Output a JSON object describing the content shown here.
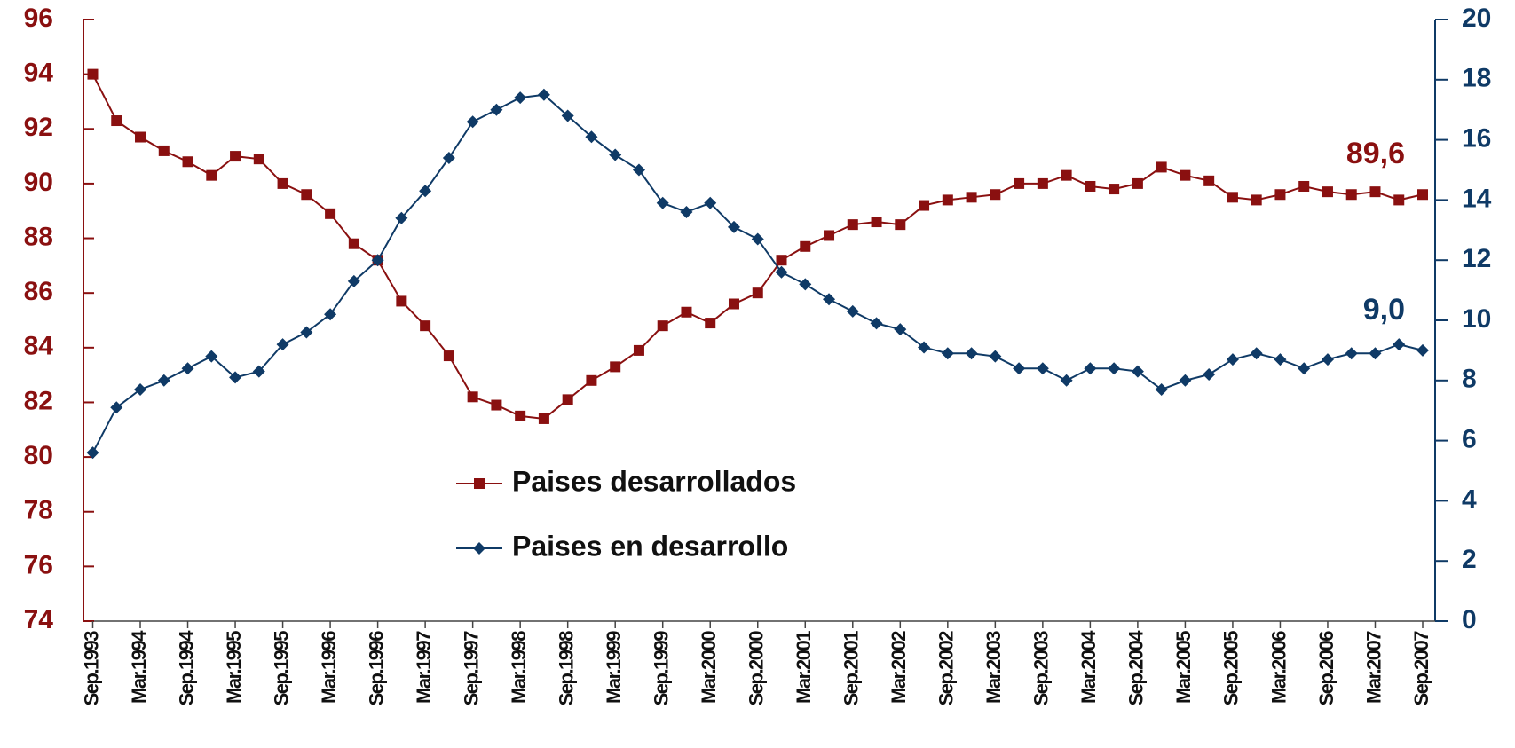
{
  "chart_data": {
    "type": "line",
    "categories": [
      "Sep.1993",
      null,
      "Mar.1994",
      null,
      "Sep.1994",
      null,
      "Mar.1995",
      null,
      "Sep.1995",
      null,
      "Mar.1996",
      null,
      "Sep.1996",
      null,
      "Mar.1997",
      null,
      "Sep.1997",
      null,
      "Mar.1998",
      null,
      "Sep.1998",
      null,
      "Mar.1999",
      null,
      "Sep.1999",
      null,
      "Mar.2000",
      null,
      "Sep.2000",
      null,
      "Mar.2001",
      null,
      "Sep.2001",
      null,
      "Mar.2002",
      null,
      "Sep.2002",
      null,
      "Mar.2003",
      null,
      "Sep.2003",
      null,
      "Mar.2004",
      null,
      "Sep.2004",
      null,
      "Mar.2005",
      null,
      "Sep.2005",
      null,
      "Mar.2006",
      null,
      "Sep.2006",
      null,
      "Mar.2007",
      null,
      "Sep.2007"
    ],
    "series": [
      {
        "name": "Paises desarrollados",
        "color": "#8a1010",
        "marker": "square",
        "values": [
          94.0,
          92.3,
          91.7,
          91.2,
          90.8,
          90.3,
          91.0,
          90.9,
          90.0,
          89.6,
          88.9,
          87.8,
          87.2,
          85.7,
          84.8,
          83.7,
          82.2,
          81.9,
          81.5,
          81.4,
          82.1,
          82.8,
          83.3,
          83.9,
          84.8,
          85.3,
          84.9,
          85.6,
          86.0,
          87.2,
          87.7,
          88.1,
          88.5,
          88.6,
          88.5,
          89.2,
          89.4,
          89.5,
          89.6,
          90.0,
          90.0,
          90.3,
          89.9,
          89.8,
          90.0,
          90.6,
          90.3,
          90.1,
          89.5,
          89.4,
          89.6,
          89.9,
          89.7,
          89.6,
          89.7,
          89.4,
          89.6
        ]
      },
      {
        "name": "Paises en desarrollo",
        "color": "#0f3a66",
        "marker": "diamond",
        "axis": "y2",
        "values": [
          5.6,
          7.1,
          7.7,
          8.0,
          8.4,
          8.8,
          8.1,
          8.3,
          9.2,
          9.6,
          10.2,
          11.3,
          12.0,
          13.4,
          14.3,
          15.4,
          16.6,
          17.0,
          17.4,
          17.5,
          16.8,
          16.1,
          15.5,
          15.0,
          13.9,
          13.6,
          13.9,
          13.1,
          12.7,
          11.6,
          11.2,
          10.7,
          10.3,
          9.9,
          9.7,
          9.1,
          8.9,
          8.9,
          8.8,
          8.4,
          8.4,
          8.0,
          8.4,
          8.4,
          8.3,
          7.7,
          8.0,
          8.2,
          8.7,
          8.9,
          8.7,
          8.4,
          8.7,
          8.9,
          8.9,
          9.2,
          9.0
        ]
      }
    ],
    "annotations": [
      {
        "text": "89,6",
        "color": "#8a1010"
      },
      {
        "text": "9,0",
        "color": "#0f3a66"
      }
    ],
    "ylim": [
      74,
      96
    ],
    "yticks": [
      74,
      76,
      78,
      80,
      82,
      84,
      86,
      88,
      90,
      92,
      94,
      96
    ],
    "y2lim": [
      0,
      20
    ],
    "y2ticks": [
      0,
      2,
      4,
      6,
      8,
      10,
      12,
      14,
      16,
      18,
      20
    ],
    "grid": false
  }
}
